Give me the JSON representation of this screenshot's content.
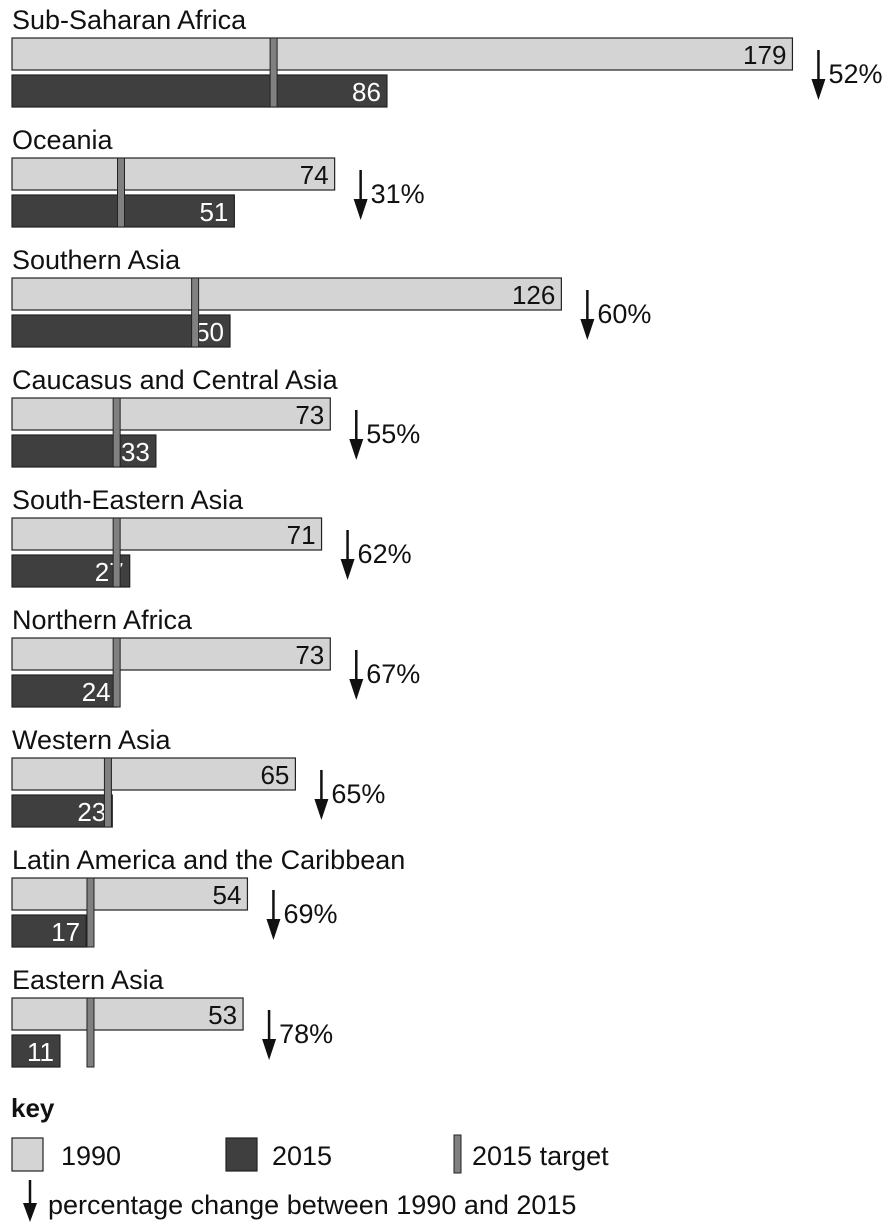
{
  "colors": {
    "bar_1990": "#d4d4d4",
    "bar_2015": "#3f3f3f",
    "target_marker": "#808080",
    "outline": "#222222"
  },
  "chart_data": {
    "type": "bar",
    "orientation": "horizontal",
    "grid": false,
    "legend_position": "bottom-left",
    "categories": [
      "Sub-Saharan Africa",
      "Oceania",
      "Southern Asia",
      "Caucasus and Central Asia",
      "South-Eastern Asia",
      "Northern Africa",
      "Western Asia",
      "Latin America and the Caribbean",
      "Eastern Asia"
    ],
    "series": [
      {
        "name": "1990",
        "values": [
          179,
          74,
          126,
          73,
          71,
          73,
          65,
          54,
          53
        ]
      },
      {
        "name": "2015",
        "values": [
          86,
          51,
          50,
          33,
          27,
          24,
          23,
          17,
          11
        ]
      },
      {
        "name": "2015 target",
        "values": [
          60,
          25,
          42,
          24,
          24,
          24,
          22,
          18,
          18
        ]
      }
    ],
    "change_labels": [
      "52%",
      "31%",
      "60%",
      "55%",
      "62%",
      "67%",
      "65%",
      "69%",
      "78%"
    ],
    "change_direction": "down"
  },
  "legend": {
    "title": "key",
    "items": [
      {
        "label": "1990"
      },
      {
        "label": "2015"
      },
      {
        "label": "2015 target"
      }
    ],
    "arrow_label": "percentage change between 1990 and 2015"
  }
}
